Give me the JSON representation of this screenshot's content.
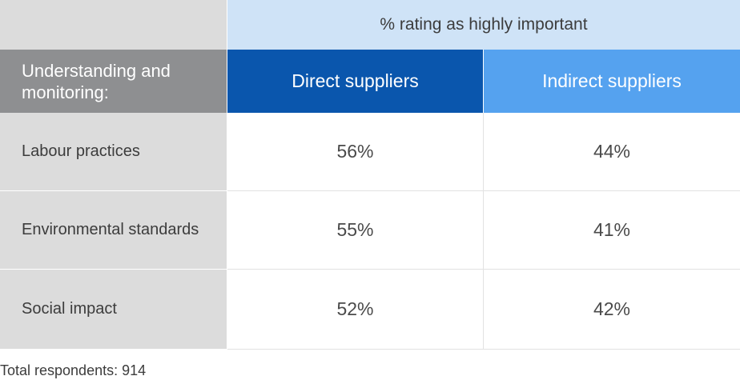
{
  "chart_data": {
    "type": "table",
    "title": "% rating as highly important",
    "row_header": "Understanding and monitoring:",
    "columns": [
      "Direct suppliers",
      "Indirect suppliers"
    ],
    "rows": [
      {
        "label": "Labour practices",
        "values": [
          "56%",
          "44%"
        ]
      },
      {
        "label": "Environmental standards",
        "values": [
          "55%",
          "41%"
        ]
      },
      {
        "label": "Social impact",
        "values": [
          "52%",
          "42%"
        ]
      }
    ],
    "footnote": "Total respondents: 914"
  },
  "colors": {
    "direct_header": "#0a56ad",
    "indirect_header": "#55a2ef",
    "span_header": "#cfe3f7",
    "row_header": "#8e8f91",
    "row_label": "#dcdcdc"
  }
}
